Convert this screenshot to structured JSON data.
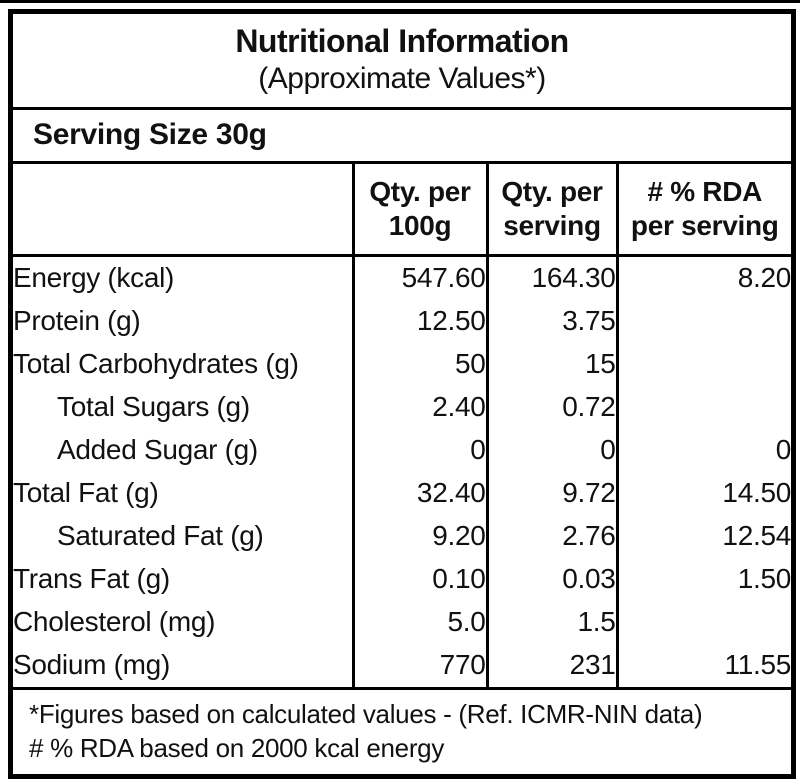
{
  "title_block": {
    "title": "Nutritional Information",
    "subtitle": "(Approximate Values*)"
  },
  "serving_size": "Serving Size 30g",
  "table": {
    "headers": {
      "col2": {
        "line1": "Qty. per",
        "line2": "100g"
      },
      "col3": {
        "line1": "Qty. per",
        "line2": "serving"
      },
      "col4": {
        "line1": "# % RDA",
        "line2": "per serving"
      }
    },
    "rows": [
      {
        "label": "Energy (kcal)",
        "qty_per_100g": "547.60",
        "qty_per_serving": "164.30",
        "rda_per_serving": "8.20"
      },
      {
        "label": "Protein (g)",
        "qty_per_100g": "12.50",
        "qty_per_serving": "3.75",
        "rda_per_serving": ""
      },
      {
        "label": "Total Carbohydrates (g)",
        "qty_per_100g": "50",
        "qty_per_serving": "15",
        "rda_per_serving": ""
      },
      {
        "label": "Total Sugars (g)",
        "qty_per_100g": "2.40",
        "qty_per_serving": "0.72",
        "rda_per_serving": ""
      },
      {
        "label": "Added Sugar (g)",
        "qty_per_100g": "0",
        "qty_per_serving": "0",
        "rda_per_serving": "0"
      },
      {
        "label": "Total Fat (g)",
        "qty_per_100g": "32.40",
        "qty_per_serving": "9.72",
        "rda_per_serving": "14.50"
      },
      {
        "label": "Saturated Fat (g)",
        "qty_per_100g": "9.20",
        "qty_per_serving": "2.76",
        "rda_per_serving": "12.54"
      },
      {
        "label": "Trans Fat (g)",
        "qty_per_100g": "0.10",
        "qty_per_serving": "0.03",
        "rda_per_serving": "1.50"
      },
      {
        "label": "Cholesterol (mg)",
        "qty_per_100g": "5.0",
        "qty_per_serving": "1.5",
        "rda_per_serving": ""
      },
      {
        "label": "Sodium (mg)",
        "qty_per_100g": "770",
        "qty_per_serving": "231",
        "rda_per_serving": "11.55"
      }
    ]
  },
  "footnotes": {
    "line1": "*Figures based on calculated values - (Ref. ICMR-NIN data)",
    "line2": "# % RDA based on 2000 kcal energy"
  },
  "colors": {
    "text": "#111111",
    "border": "#000000",
    "background": "#ffffff"
  }
}
